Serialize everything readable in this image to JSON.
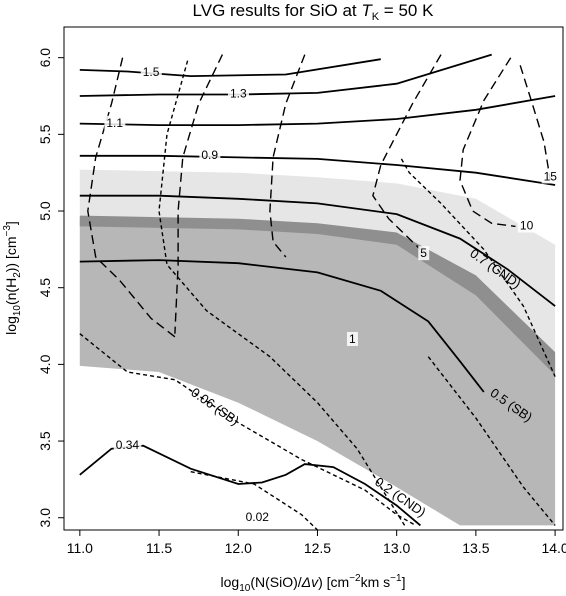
{
  "chart_data": {
    "type": "contour",
    "title_prefix": "LVG results for SiO at ",
    "title_var": "T",
    "title_sub": "K",
    "title_suffix": " = 50 K",
    "xlabel": {
      "pre": "log",
      "sub": "10",
      "mid": "(N(SiO)/",
      "delta": "Δv",
      "post": ") [cm",
      "exp1": "−2",
      "post2": "km s",
      "exp2": "−1",
      "end": "]"
    },
    "ylabel": {
      "pre": "log",
      "sub": "10",
      "mid": "(n(H",
      "sub2": "2",
      "post": ")) [cm",
      "exp": "−3",
      "end": "]"
    },
    "xlim": [
      10.9,
      14.05
    ],
    "ylim": [
      2.92,
      6.2
    ],
    "xticks": [
      "11.0",
      "11.5",
      "12.0",
      "12.5",
      "13.0",
      "13.5",
      "14.0"
    ],
    "yticks": [
      "3.0",
      "3.5",
      "4.0",
      "4.5",
      "5.0",
      "5.5",
      "6.0"
    ],
    "colors": {
      "light_band": "#e6e6e6",
      "medium_band": "#b7b7b7",
      "dark_band": "#8f8f8f",
      "line": "#000000"
    },
    "regions": [
      {
        "name": "light-band",
        "upper": [
          [
            11.0,
            5.27
          ],
          [
            12.0,
            5.25
          ],
          [
            12.5,
            5.22
          ],
          [
            13.0,
            5.18
          ],
          [
            13.5,
            5.08
          ],
          [
            14.0,
            4.78
          ]
        ],
        "lower": [
          [
            11.0,
            4.95
          ],
          [
            12.0,
            4.92
          ],
          [
            12.5,
            4.9
          ],
          [
            13.0,
            4.85
          ],
          [
            13.5,
            4.55
          ],
          [
            14.0,
            4.05
          ]
        ]
      },
      {
        "name": "medium-band",
        "upper": [
          [
            11.0,
            4.95
          ],
          [
            12.0,
            4.92
          ],
          [
            12.5,
            4.9
          ],
          [
            13.0,
            4.85
          ],
          [
            13.5,
            4.55
          ],
          [
            14.0,
            4.05
          ]
        ],
        "lower": [
          [
            11.0,
            3.99
          ],
          [
            11.5,
            3.95
          ],
          [
            12.0,
            3.75
          ],
          [
            12.5,
            3.5
          ],
          [
            13.0,
            3.2
          ],
          [
            13.4,
            2.95
          ],
          [
            14.0,
            2.95
          ]
        ]
      },
      {
        "name": "dark-band",
        "upper": [
          [
            11.0,
            4.97
          ],
          [
            12.0,
            4.95
          ],
          [
            12.5,
            4.92
          ],
          [
            13.0,
            4.86
          ],
          [
            13.5,
            4.58
          ],
          [
            14.0,
            4.08
          ]
        ],
        "lower": [
          [
            11.0,
            4.9
          ],
          [
            12.0,
            4.88
          ],
          [
            12.5,
            4.85
          ],
          [
            13.0,
            4.78
          ],
          [
            13.5,
            4.45
          ],
          [
            14.0,
            3.93
          ]
        ]
      }
    ],
    "solid_contours": [
      {
        "label": "1.5",
        "points": [
          [
            11.0,
            5.92
          ],
          [
            11.3,
            5.91
          ],
          [
            11.7,
            5.88
          ],
          [
            12.3,
            5.89
          ],
          [
            12.9,
            5.99
          ]
        ],
        "label_at": [
          11.45,
          5.9
        ]
      },
      {
        "label": "1.3",
        "points": [
          [
            11.0,
            5.75
          ],
          [
            11.5,
            5.76
          ],
          [
            12.0,
            5.76
          ],
          [
            12.5,
            5.77
          ],
          [
            13.0,
            5.83
          ],
          [
            13.6,
            6.02
          ]
        ],
        "label_at": [
          12.0,
          5.76
        ]
      },
      {
        "label": "1.1",
        "points": [
          [
            11.0,
            5.57
          ],
          [
            11.5,
            5.56
          ],
          [
            12.0,
            5.56
          ],
          [
            12.5,
            5.57
          ],
          [
            13.0,
            5.6
          ],
          [
            13.5,
            5.66
          ],
          [
            14.0,
            5.75
          ]
        ],
        "label_at": [
          11.22,
          5.57
        ]
      },
      {
        "label": "0.9",
        "points": [
          [
            11.0,
            5.36
          ],
          [
            11.5,
            5.36
          ],
          [
            12.0,
            5.35
          ],
          [
            12.5,
            5.34
          ],
          [
            13.0,
            5.3
          ],
          [
            13.5,
            5.25
          ],
          [
            14.0,
            5.17
          ]
        ],
        "label_at": [
          11.82,
          5.36
        ]
      },
      {
        "label": "0.7 (CND)",
        "points": [
          [
            11.0,
            5.1
          ],
          [
            11.5,
            5.1
          ],
          [
            12.0,
            5.08
          ],
          [
            12.5,
            5.05
          ],
          [
            13.0,
            4.98
          ],
          [
            13.4,
            4.82
          ],
          [
            13.7,
            4.62
          ],
          [
            14.0,
            4.38
          ]
        ],
        "label_at": [
          13.62,
          4.62
        ]
      },
      {
        "label": "0.5 (SB)",
        "points": [
          [
            11.0,
            4.67
          ],
          [
            11.5,
            4.68
          ],
          [
            12.0,
            4.66
          ],
          [
            12.5,
            4.6
          ],
          [
            12.9,
            4.48
          ],
          [
            13.2,
            4.28
          ],
          [
            13.4,
            4.02
          ],
          [
            13.55,
            3.82
          ]
        ],
        "label_at": [
          13.72,
          3.73
        ]
      },
      {
        "label": "0.34",
        "points": [
          [
            11.0,
            3.28
          ],
          [
            11.2,
            3.45
          ],
          [
            11.4,
            3.47
          ],
          [
            11.7,
            3.32
          ],
          [
            12.0,
            3.22
          ],
          [
            12.15,
            3.23
          ],
          [
            12.3,
            3.28
          ],
          [
            12.42,
            3.35
          ],
          [
            12.6,
            3.33
          ],
          [
            12.8,
            3.22
          ],
          [
            13.0,
            3.08
          ],
          [
            13.15,
            2.95
          ]
        ],
        "label_at": [
          11.3,
          3.47
        ]
      }
    ],
    "dashed_contours": [
      {
        "label": "",
        "style": "long",
        "points": [
          [
            11.27,
            6.0
          ],
          [
            11.2,
            5.7
          ],
          [
            11.1,
            5.35
          ],
          [
            11.05,
            5.0
          ],
          [
            11.1,
            4.7
          ],
          [
            11.25,
            4.55
          ],
          [
            11.45,
            4.3
          ],
          [
            11.6,
            4.18
          ]
        ]
      },
      {
        "label": "",
        "style": "long",
        "points": [
          [
            11.9,
            6.02
          ],
          [
            11.75,
            5.7
          ],
          [
            11.65,
            5.35
          ],
          [
            11.62,
            5.0
          ],
          [
            11.62,
            4.65
          ],
          [
            11.6,
            4.2
          ]
        ]
      },
      {
        "label": "",
        "style": "long",
        "points": [
          [
            12.42,
            6.02
          ],
          [
            12.3,
            5.7
          ],
          [
            12.22,
            5.35
          ],
          [
            12.2,
            5.0
          ],
          [
            12.22,
            4.8
          ],
          [
            12.3,
            4.7
          ]
        ]
      },
      {
        "label": "5",
        "style": "long",
        "points": [
          [
            13.28,
            6.02
          ],
          [
            13.1,
            5.7
          ],
          [
            12.9,
            5.3
          ],
          [
            12.85,
            5.1
          ],
          [
            12.95,
            4.95
          ],
          [
            13.15,
            4.75
          ]
        ],
        "label_at": [
          13.17,
          4.72
        ]
      },
      {
        "label": "10",
        "style": "long",
        "points": [
          [
            13.72,
            6.0
          ],
          [
            13.55,
            5.72
          ],
          [
            13.42,
            5.4
          ],
          [
            13.4,
            5.2
          ],
          [
            13.48,
            5.0
          ],
          [
            13.6,
            4.92
          ],
          [
            13.75,
            4.9
          ]
        ],
        "label_at": [
          13.82,
          4.9
        ]
      },
      {
        "label": "15",
        "style": "long",
        "points": [
          [
            13.78,
            5.95
          ],
          [
            13.85,
            5.72
          ],
          [
            13.93,
            5.45
          ],
          [
            13.97,
            5.2
          ]
        ],
        "label_at": [
          13.97,
          5.22
        ]
      },
      {
        "label": "1",
        "style": "short",
        "points": [
          [
            11.68,
            5.98
          ],
          [
            11.55,
            5.5
          ],
          [
            11.5,
            5.0
          ],
          [
            11.55,
            4.65
          ],
          [
            11.8,
            4.35
          ],
          [
            12.2,
            4.05
          ],
          [
            12.5,
            3.75
          ],
          [
            12.75,
            3.45
          ],
          [
            12.9,
            3.2
          ],
          [
            13.05,
            2.95
          ]
        ],
        "label_at": [
          12.72,
          4.16
        ]
      },
      {
        "label": "0.2 (CND)",
        "style": "short",
        "points": [
          [
            11.0,
            4.2
          ],
          [
            11.3,
            3.95
          ],
          [
            11.6,
            3.9
          ],
          [
            12.0,
            3.62
          ],
          [
            12.4,
            3.38
          ],
          [
            12.8,
            3.18
          ],
          [
            13.0,
            3.02
          ],
          [
            13.12,
            2.95
          ]
        ],
        "label_at": [
          13.02,
          3.13
        ]
      },
      {
        "label": "0.06 (SB)",
        "style": "short",
        "points": [
          [
            13.03,
            5.34
          ],
          [
            13.08,
            5.25
          ],
          [
            13.28,
            5.05
          ],
          [
            13.55,
            4.75
          ],
          [
            13.8,
            4.38
          ],
          [
            14.0,
            3.92
          ]
        ],
        "label_at": [
          11.85,
          3.72
        ]
      },
      {
        "label": "0.02",
        "style": "short",
        "points": [
          [
            11.7,
            3.3
          ],
          [
            12.1,
            3.22
          ],
          [
            12.4,
            3.02
          ],
          [
            12.5,
            2.92
          ]
        ],
        "label_at": [
          12.12,
          3.0
        ]
      },
      {
        "label": "",
        "style": "short",
        "points": [
          [
            13.2,
            4.05
          ],
          [
            13.5,
            3.65
          ],
          [
            13.8,
            3.2
          ],
          [
            14.0,
            2.95
          ]
        ]
      }
    ]
  }
}
